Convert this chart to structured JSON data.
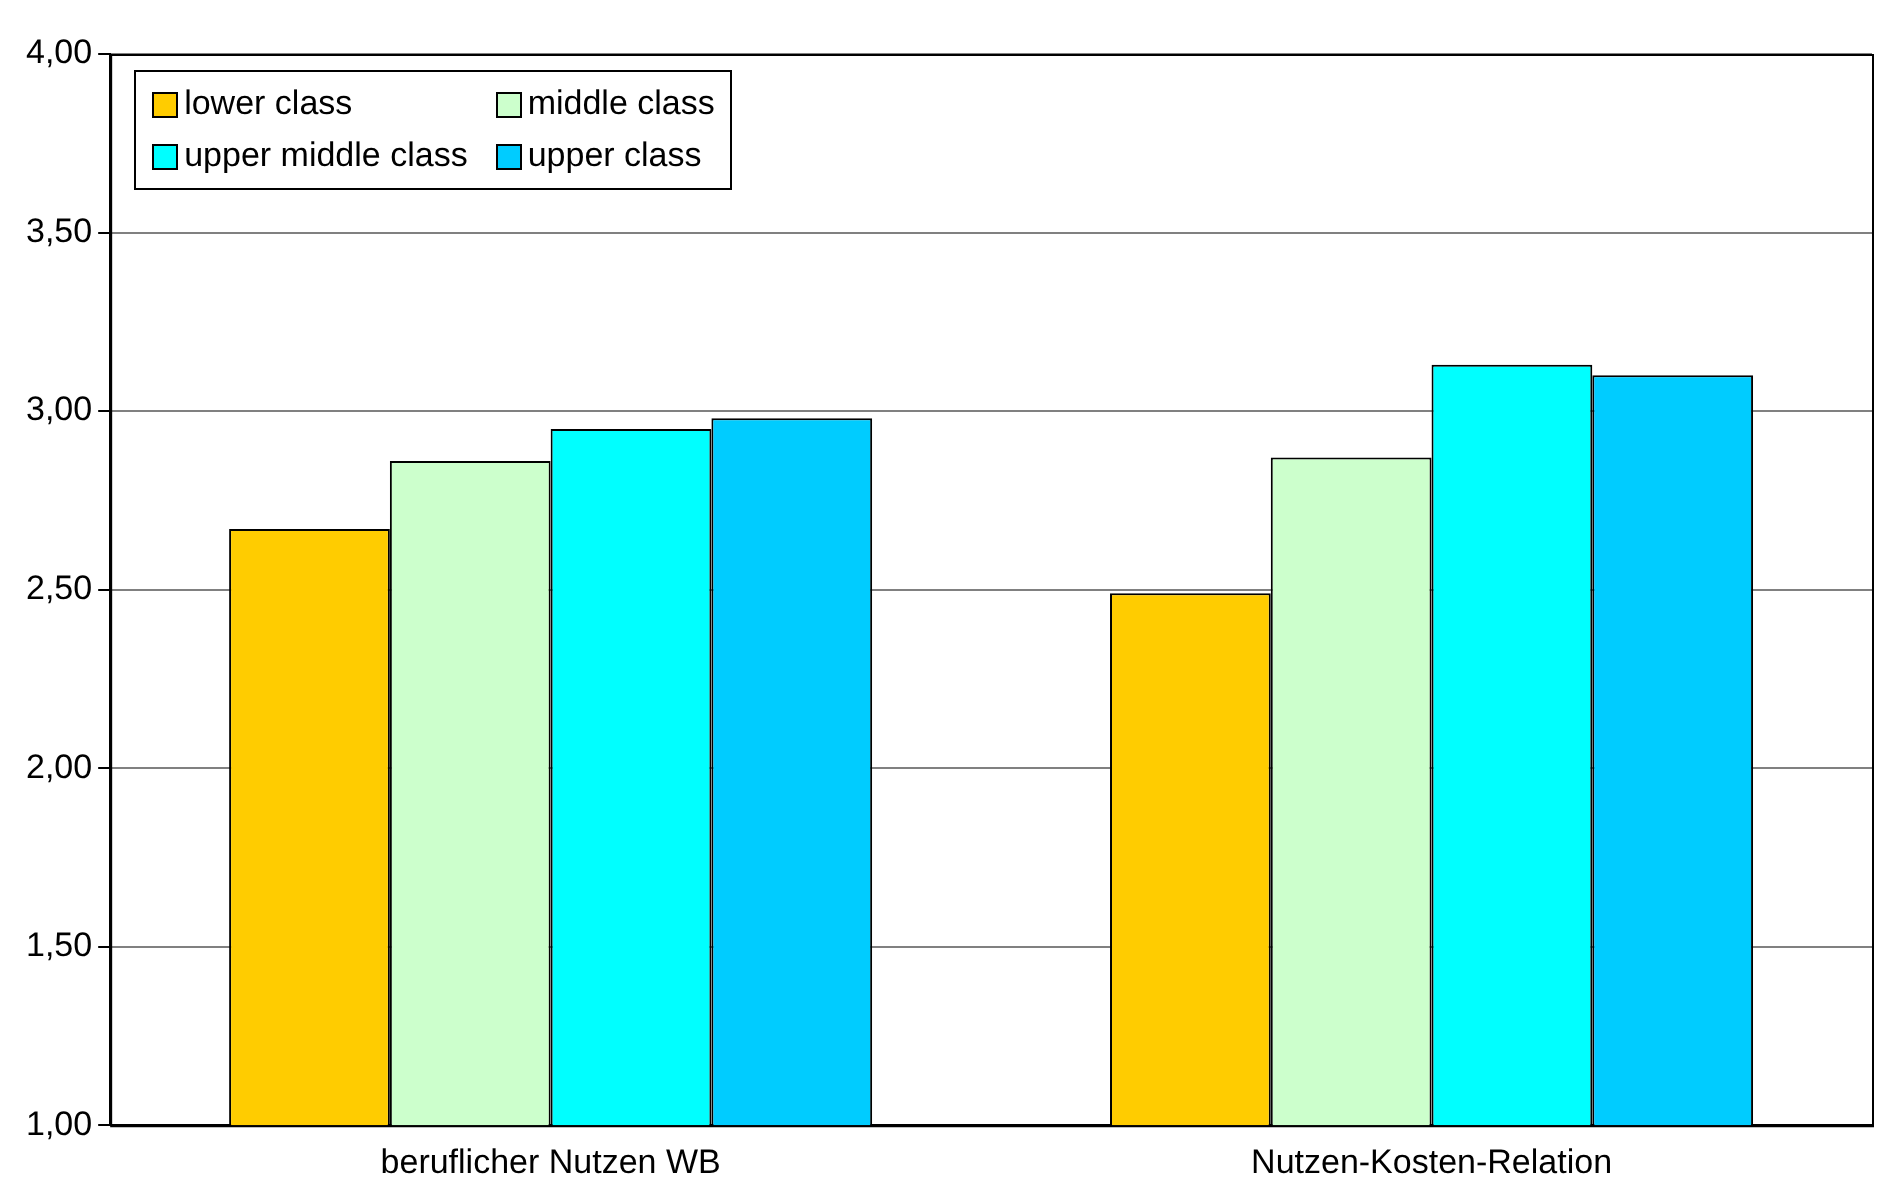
{
  "chart_data": {
    "type": "bar",
    "categories": [
      "beruflicher Nutzen WB",
      "Nutzen-Kosten-Relation"
    ],
    "series": [
      {
        "name": "lower class",
        "color": "#ffcc00",
        "values": [
          2.67,
          2.49
        ]
      },
      {
        "name": "middle class",
        "color": "#ccffcc",
        "values": [
          2.86,
          2.87
        ]
      },
      {
        "name": "upper middle class",
        "color": "#00ffff",
        "values": [
          2.95,
          3.13
        ]
      },
      {
        "name": "upper class",
        "color": "#00ccff",
        "values": [
          2.98,
          3.1
        ]
      }
    ],
    "ylim": [
      1,
      4
    ],
    "yticks": [
      {
        "value": 1,
        "label": "1,00"
      },
      {
        "value": 1.5,
        "label": "1,50"
      },
      {
        "value": 2,
        "label": "2,00"
      },
      {
        "value": 2.5,
        "label": "2,50"
      },
      {
        "value": 3,
        "label": "3,00"
      },
      {
        "value": 3.5,
        "label": "3,50"
      },
      {
        "value": 4,
        "label": "4,00"
      }
    ],
    "grid": "y",
    "legend": "top left"
  }
}
